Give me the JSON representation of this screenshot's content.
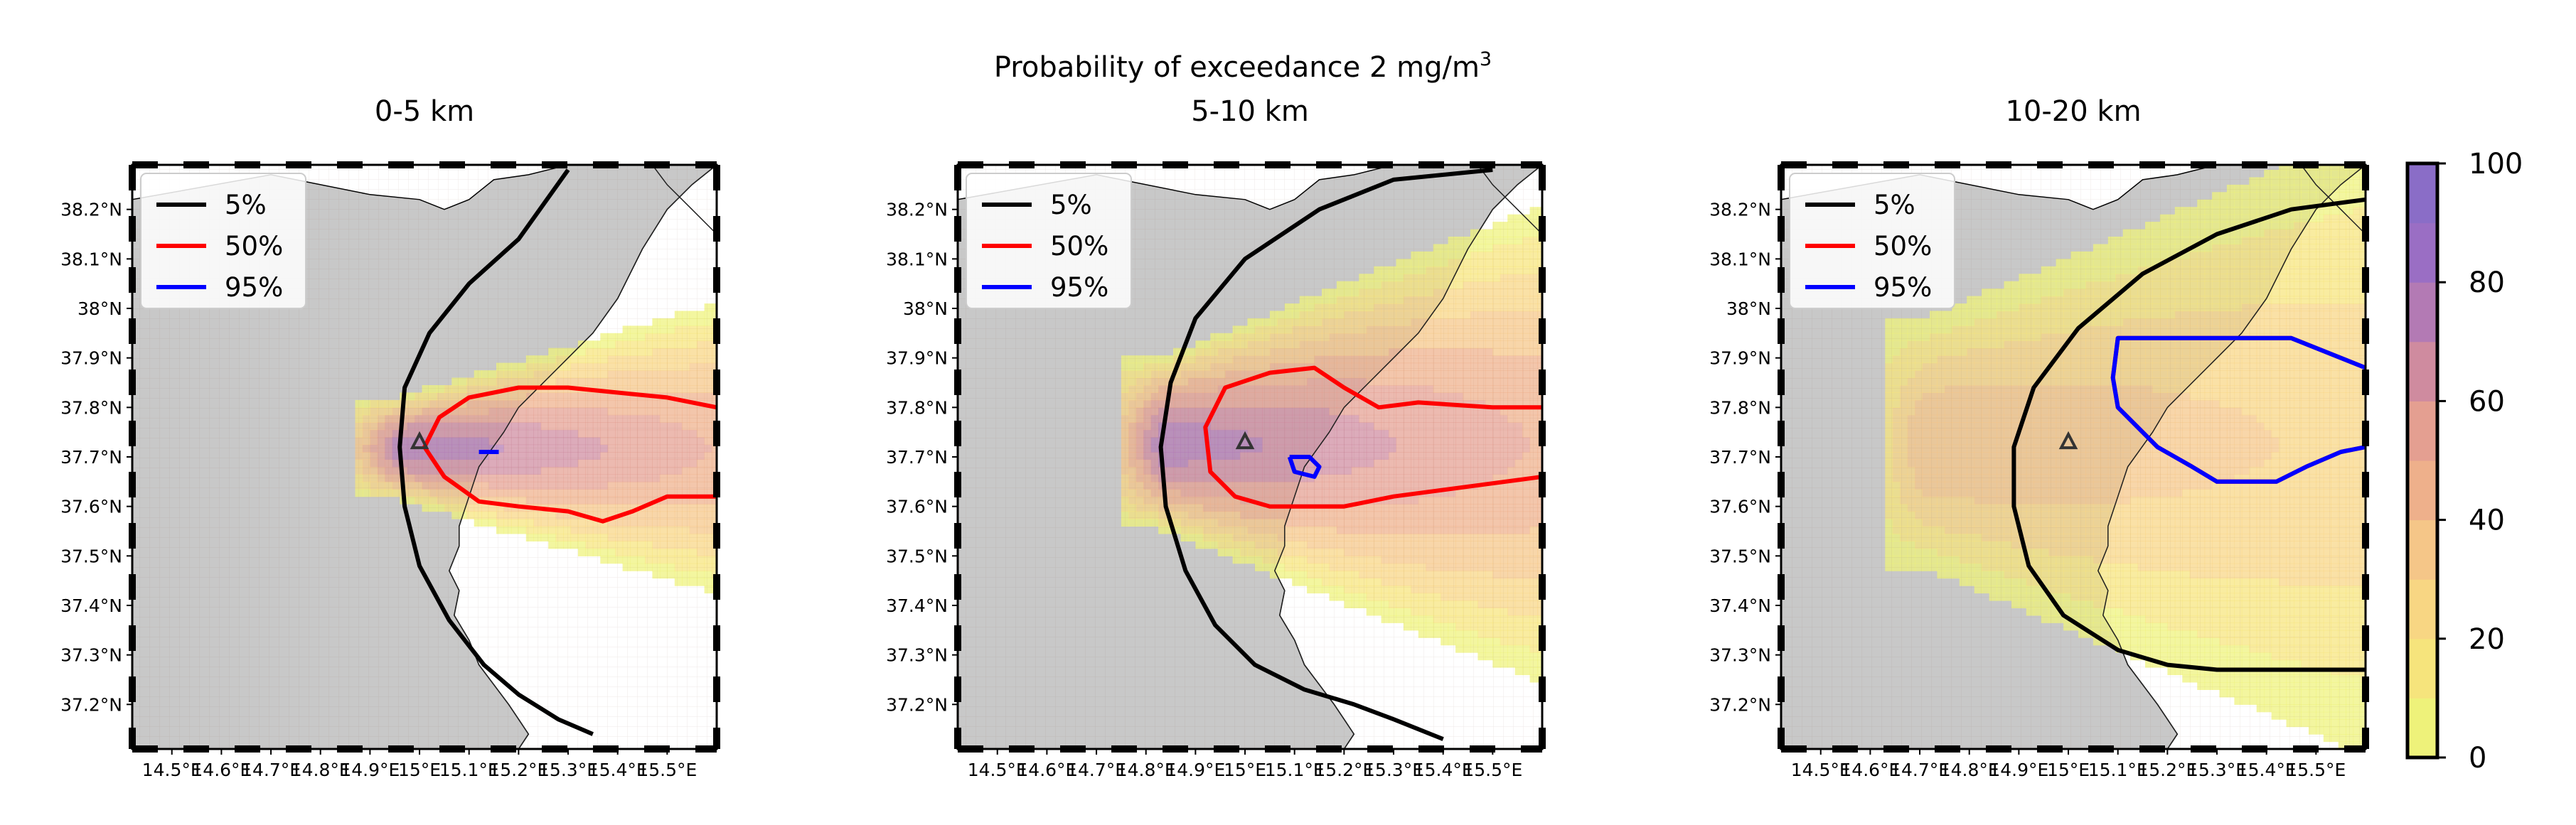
{
  "figure": {
    "suptitle_main": "Probability of exceedance 2 mg/m",
    "suptitle_sup": "3"
  },
  "colorbar": {
    "ticks": [
      0,
      20,
      40,
      60,
      80,
      100
    ],
    "levels": [
      0,
      10,
      20,
      30,
      40,
      50,
      60,
      70,
      80,
      90,
      100
    ],
    "colors": [
      "#eef27a",
      "#f6e47c",
      "#f8d683",
      "#f5c688",
      "#eeb08b",
      "#e49f91",
      "#cf8b9f",
      "#b37ab4",
      "#9a6ec4",
      "#8a6dc7",
      "#7e7ec7"
    ]
  },
  "map": {
    "lon_ticks": [
      "14.5°E",
      "14.6°E",
      "14.7°E",
      "14.8°E",
      "14.9°E",
      "15°E",
      "15.1°E",
      "15.2°E",
      "15.3°E",
      "15.4°E",
      "15.5°E"
    ],
    "lat_ticks": [
      "38.2°N",
      "38.1°N",
      "38°N",
      "37.9°N",
      "37.8°N",
      "37.7°N",
      "37.6°N",
      "37.5°N",
      "37.4°N",
      "37.3°N",
      "37.2°N"
    ],
    "vent": {
      "lon": 15.0,
      "lat": 37.73
    },
    "colors": {
      "land": "#c8c8c8",
      "c5": "#000000",
      "c50": "#ff0000",
      "c95": "#0000ff"
    }
  },
  "legend": [
    {
      "label": "5%",
      "color": "#000000"
    },
    {
      "label": "50%",
      "color": "#ff0000"
    },
    {
      "label": "95%",
      "color": "#0000ff"
    }
  ],
  "chart_data": [
    {
      "type": "heatmap",
      "title": "0-5 km",
      "xlim": [
        14.42,
        15.6
      ],
      "ylim": [
        37.11,
        38.29
      ],
      "peak_probability": 80,
      "plume": {
        "lon0": 14.95,
        "lat": 37.71,
        "half_width_lat": 0.3,
        "length_lon": 0.65
      },
      "contours": {
        "5%": [
          [
            15.3,
            38.28
          ],
          [
            15.2,
            38.14
          ],
          [
            15.1,
            38.05
          ],
          [
            15.02,
            37.95
          ],
          [
            14.97,
            37.84
          ],
          [
            14.96,
            37.72
          ],
          [
            14.97,
            37.6
          ],
          [
            15.0,
            37.48
          ],
          [
            15.06,
            37.37
          ],
          [
            15.13,
            37.28
          ],
          [
            15.2,
            37.22
          ],
          [
            15.28,
            37.17
          ],
          [
            15.35,
            37.14
          ]
        ],
        "50%": [
          [
            15.6,
            37.8
          ],
          [
            15.5,
            37.82
          ],
          [
            15.3,
            37.84
          ],
          [
            15.2,
            37.84
          ],
          [
            15.1,
            37.82
          ],
          [
            15.04,
            37.78
          ],
          [
            15.01,
            37.72
          ],
          [
            15.05,
            37.66
          ],
          [
            15.12,
            37.61
          ],
          [
            15.2,
            37.6
          ],
          [
            15.3,
            37.59
          ],
          [
            15.37,
            37.57
          ],
          [
            15.43,
            37.59
          ],
          [
            15.5,
            37.62
          ],
          [
            15.6,
            37.62
          ]
        ],
        "95%": [
          [
            15.12,
            37.71
          ],
          [
            15.16,
            37.71
          ]
        ]
      }
    },
    {
      "type": "heatmap",
      "title": "5-10 km",
      "xlim": [
        14.42,
        15.6
      ],
      "ylim": [
        37.11,
        38.29
      ],
      "peak_probability": 78,
      "plume": {
        "lon0": 14.82,
        "lat": 37.72,
        "half_width_lat": 0.5,
        "length_lon": 0.8
      },
      "contours": {
        "5%": [
          [
            15.5,
            38.28
          ],
          [
            15.3,
            38.26
          ],
          [
            15.15,
            38.2
          ],
          [
            15.0,
            38.1
          ],
          [
            14.9,
            37.98
          ],
          [
            14.85,
            37.85
          ],
          [
            14.83,
            37.72
          ],
          [
            14.84,
            37.6
          ],
          [
            14.88,
            37.47
          ],
          [
            14.94,
            37.36
          ],
          [
            15.02,
            37.28
          ],
          [
            15.12,
            37.23
          ],
          [
            15.22,
            37.2
          ],
          [
            15.3,
            37.17
          ],
          [
            15.4,
            37.13
          ]
        ],
        "50%": [
          [
            15.6,
            37.8
          ],
          [
            15.5,
            37.8
          ],
          [
            15.35,
            37.81
          ],
          [
            15.27,
            37.8
          ],
          [
            15.2,
            37.84
          ],
          [
            15.14,
            37.88
          ],
          [
            15.05,
            37.87
          ],
          [
            14.96,
            37.84
          ],
          [
            14.92,
            37.76
          ],
          [
            14.93,
            37.67
          ],
          [
            14.98,
            37.62
          ],
          [
            15.05,
            37.6
          ],
          [
            15.2,
            37.6
          ],
          [
            15.3,
            37.62
          ],
          [
            15.45,
            37.64
          ],
          [
            15.6,
            37.66
          ]
        ],
        "95%": [
          [
            15.09,
            37.7
          ],
          [
            15.13,
            37.7
          ],
          [
            15.15,
            37.68
          ],
          [
            15.14,
            37.66
          ],
          [
            15.1,
            37.67
          ],
          [
            15.09,
            37.7
          ]
        ]
      }
    },
    {
      "type": "heatmap",
      "title": "10-20 km",
      "xlim": [
        14.42,
        15.6
      ],
      "ylim": [
        37.11,
        38.29
      ],
      "peak_probability": 40,
      "plume": {
        "lon0": 14.7,
        "lat": 37.72,
        "half_width_lat": 0.72,
        "length_lon": 1.1
      },
      "contours": {
        "5%": [
          [
            15.6,
            38.22
          ],
          [
            15.45,
            38.2
          ],
          [
            15.3,
            38.15
          ],
          [
            15.15,
            38.07
          ],
          [
            15.02,
            37.96
          ],
          [
            14.93,
            37.84
          ],
          [
            14.89,
            37.72
          ],
          [
            14.89,
            37.6
          ],
          [
            14.92,
            37.48
          ],
          [
            14.99,
            37.38
          ],
          [
            15.1,
            37.31
          ],
          [
            15.2,
            37.28
          ],
          [
            15.3,
            37.27
          ],
          [
            15.6,
            37.27
          ]
        ],
        "50%": [
          [
            15.6,
            37.88
          ],
          [
            15.55,
            37.9
          ],
          [
            15.45,
            37.94
          ],
          [
            15.1,
            37.94
          ],
          [
            15.09,
            37.86
          ],
          [
            15.1,
            37.8
          ],
          [
            15.14,
            37.76
          ],
          [
            15.18,
            37.72
          ],
          [
            15.25,
            37.68
          ],
          [
            15.3,
            37.65
          ],
          [
            15.42,
            37.65
          ],
          [
            15.48,
            37.68
          ],
          [
            15.55,
            37.71
          ],
          [
            15.6,
            37.72
          ]
        ],
        "95%": [
          [
            15.6,
            37.88
          ],
          [
            15.55,
            37.9
          ],
          [
            15.45,
            37.94
          ],
          [
            15.1,
            37.94
          ],
          [
            15.09,
            37.86
          ],
          [
            15.1,
            37.8
          ],
          [
            15.14,
            37.76
          ],
          [
            15.18,
            37.72
          ],
          [
            15.25,
            37.68
          ],
          [
            15.3,
            37.65
          ],
          [
            15.42,
            37.65
          ],
          [
            15.48,
            37.68
          ],
          [
            15.55,
            37.71
          ],
          [
            15.6,
            37.72
          ]
        ]
      }
    }
  ]
}
